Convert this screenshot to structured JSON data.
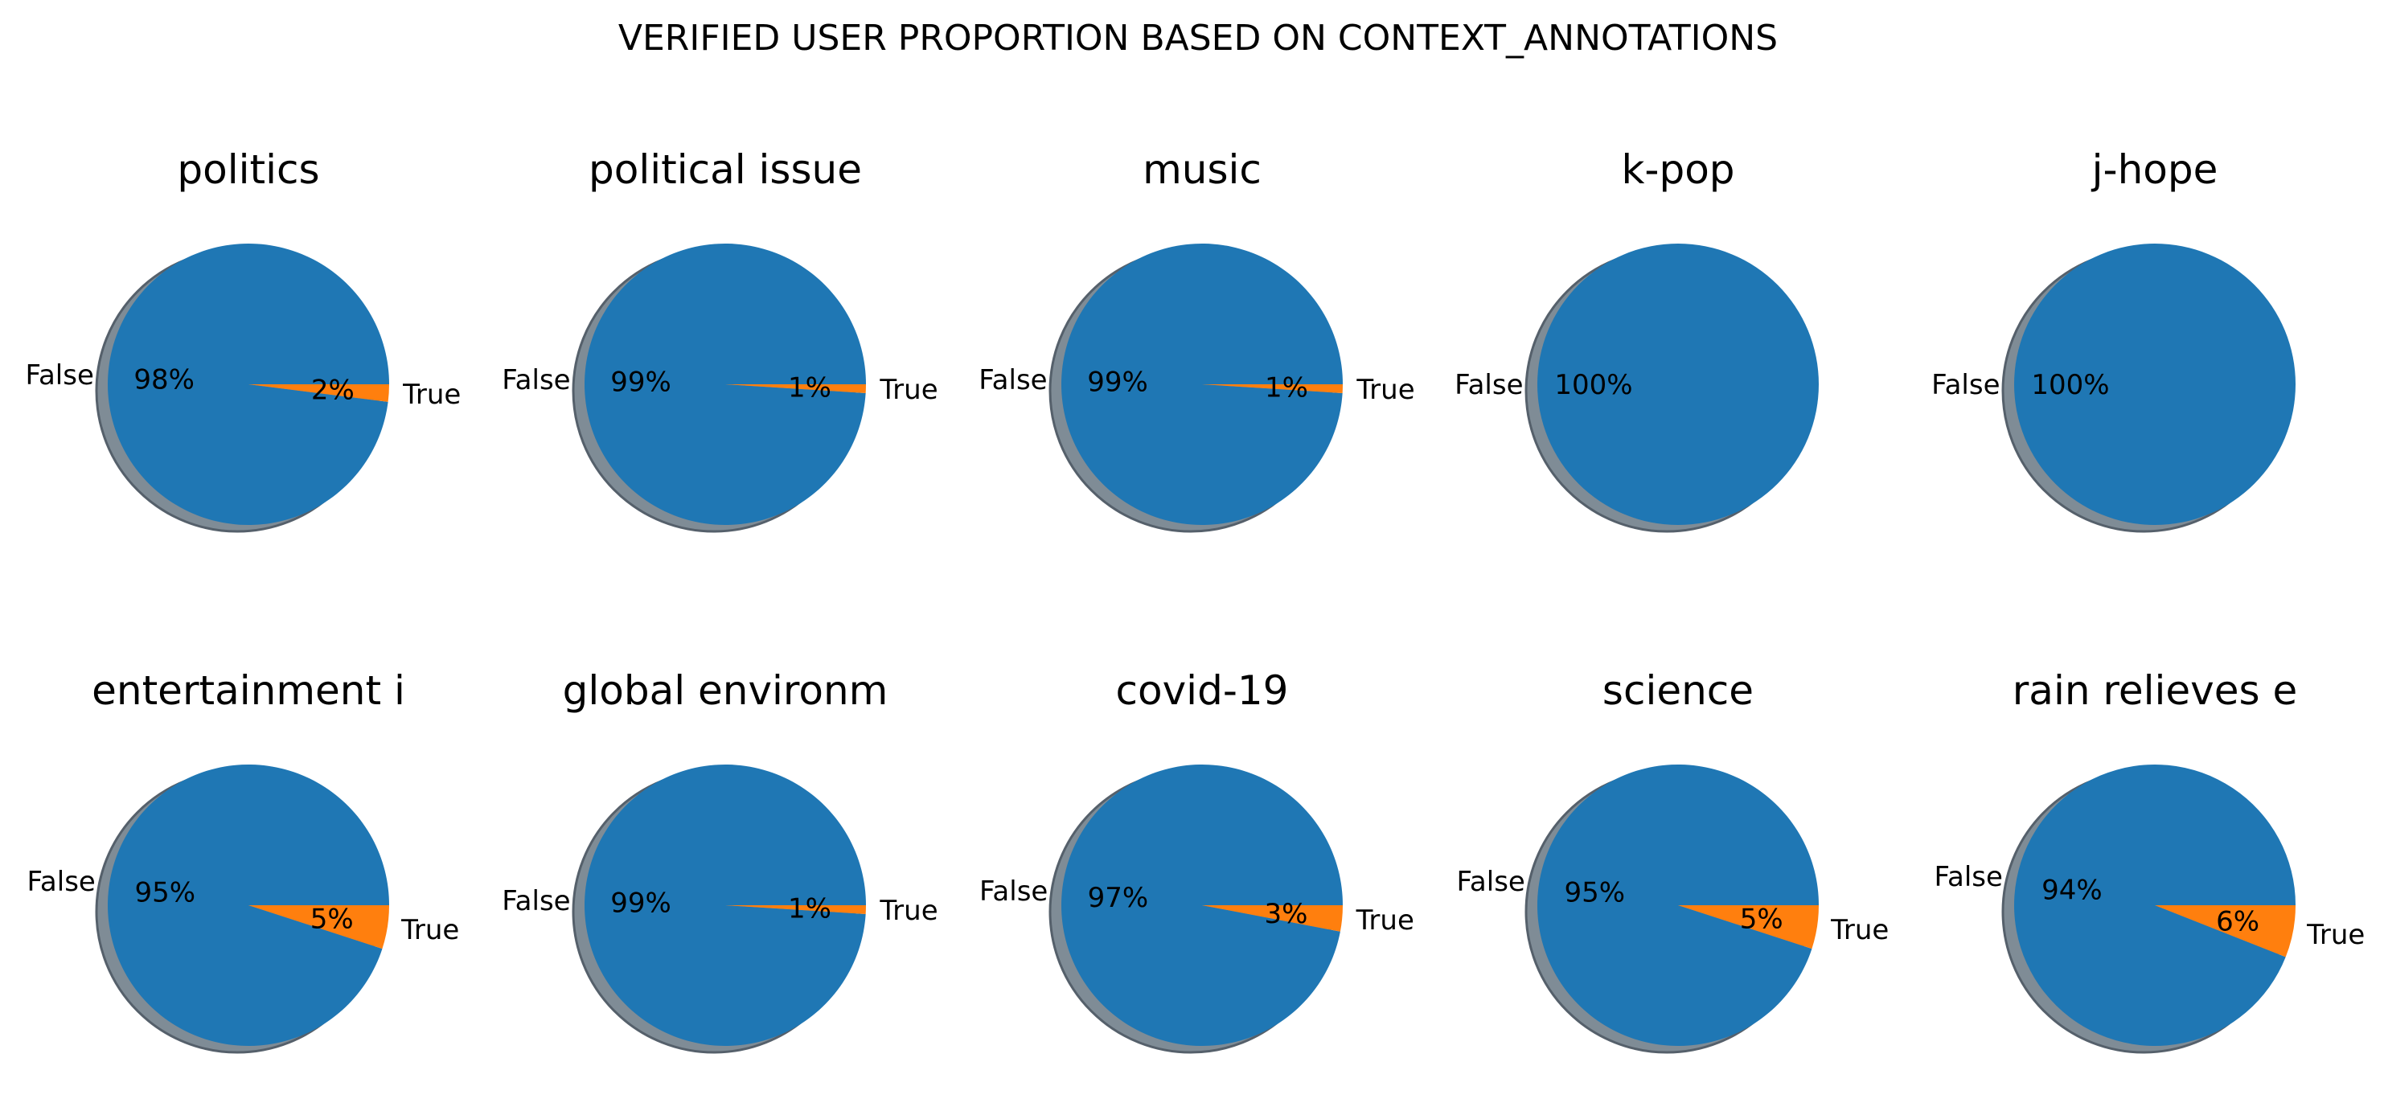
{
  "chart_data": {
    "type": "pie",
    "title": "VERIFIED USER PROPORTION BASED ON CONTEXT_ANNOTATIONS",
    "labels": [
      "False",
      "True"
    ],
    "colors": {
      "False": "#1f77b4",
      "True": "#ff7f0e",
      "shadow": "#7f8c96"
    },
    "grid": {
      "rows": 2,
      "cols": 5
    },
    "charts": [
      {
        "title": "politics",
        "values": [
          98,
          2
        ],
        "pct_labels": [
          "98%",
          "2%"
        ]
      },
      {
        "title": "political issue",
        "values": [
          99,
          1
        ],
        "pct_labels": [
          "99%",
          "1%"
        ]
      },
      {
        "title": "music",
        "values": [
          99,
          1
        ],
        "pct_labels": [
          "99%",
          "1%"
        ]
      },
      {
        "title": "k-pop",
        "values": [
          100,
          0
        ],
        "pct_labels": [
          "100%",
          ""
        ]
      },
      {
        "title": "j-hope",
        "values": [
          100,
          0
        ],
        "pct_labels": [
          "100%",
          ""
        ]
      },
      {
        "title": "entertainment i",
        "values": [
          95,
          5
        ],
        "pct_labels": [
          "95%",
          "5%"
        ]
      },
      {
        "title": "global environm",
        "values": [
          99,
          1
        ],
        "pct_labels": [
          "99%",
          "1%"
        ]
      },
      {
        "title": "covid-19",
        "values": [
          97,
          3
        ],
        "pct_labels": [
          "97%",
          "3%"
        ]
      },
      {
        "title": "science",
        "values": [
          95,
          5
        ],
        "pct_labels": [
          "95%",
          "5%"
        ]
      },
      {
        "title": "rain relieves e",
        "values": [
          94,
          6
        ],
        "pct_labels": [
          "94%",
          "6%"
        ]
      }
    ]
  }
}
